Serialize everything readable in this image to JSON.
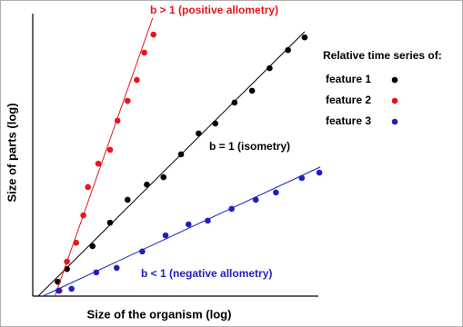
{
  "chart_data": {
    "type": "scatter",
    "x_label": "Size of the organism (log)",
    "y_label": "Size of parts (log)",
    "legend_title": "Relative time series of:",
    "xlim": [
      0,
      100
    ],
    "ylim": [
      0,
      100
    ],
    "grid": false,
    "legend_position": "upper right",
    "series": [
      {
        "name": "feature 1",
        "color": "#000000",
        "x": [
          8.7,
          11.9,
          20.8,
          26.9,
          33.0,
          39.7,
          45.5,
          51.6,
          57.7,
          63.5,
          70.2,
          76.3,
          82.4,
          88.8,
          94.6
        ],
        "values": [
          5.1,
          9.6,
          17.7,
          26.0,
          34.1,
          39.5,
          42.1,
          50.2,
          57.6,
          61.1,
          68.5,
          72.7,
          80.7,
          87.1,
          91.6
        ],
        "fit_x": [
          1.9,
          94.6
        ],
        "fit_values": [
          0,
          93.6
        ],
        "annotation": "b = 1 (isometry)"
      },
      {
        "name": "feature 2",
        "color": "#e8151b",
        "x": [
          9.3,
          11.9,
          15.1,
          17.6,
          19.2,
          22.8,
          26.9,
          29.5,
          33.0,
          36.2,
          38.8,
          42.0
        ],
        "values": [
          1.9,
          12.2,
          18.9,
          28.6,
          38.6,
          46.9,
          51.8,
          62.1,
          69.1,
          76.5,
          86.2,
          92.6
        ],
        "fit_x": [
          7.7,
          41.7
        ],
        "fit_values": [
          0,
          98.4
        ],
        "annotation": "b > 1 (positive allometry)"
      },
      {
        "name": "feature 3",
        "color": "#1f1fbf",
        "x": [
          9.0,
          13.5,
          22.1,
          29.2,
          38.1,
          46.2,
          54.2,
          60.9,
          69.2,
          77.6,
          84.6,
          93.6,
          99.7
        ],
        "values": [
          1.9,
          2.6,
          8.4,
          10.0,
          15.8,
          21.5,
          25.4,
          26.7,
          30.9,
          34.1,
          36.7,
          41.8,
          43.7
        ],
        "fit_x": [
          3.5,
          100
        ],
        "fit_values": [
          0,
          45.7
        ],
        "annotation": "b < 1 (negative allometry)"
      }
    ]
  }
}
